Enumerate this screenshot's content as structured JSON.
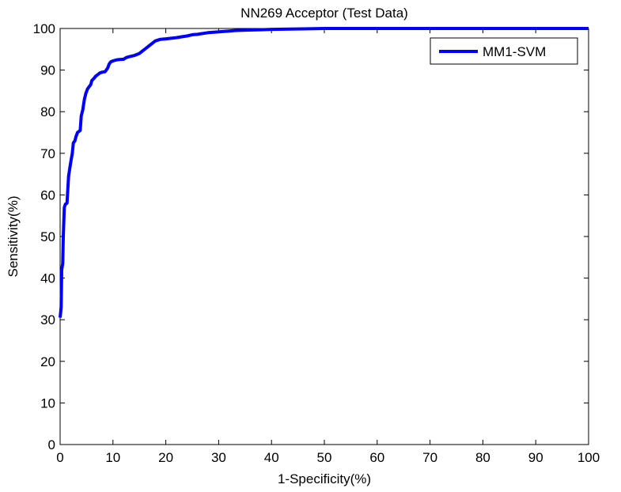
{
  "chart_data": {
    "type": "line",
    "title": "NN269 Acceptor (Test Data)",
    "xlabel": "1-Specificity(%)",
    "ylabel": "Sensitivity(%)",
    "xlim": [
      0,
      100
    ],
    "ylim": [
      0,
      100
    ],
    "xticks": [
      "0",
      "10",
      "20",
      "30",
      "40",
      "50",
      "60",
      "70",
      "80",
      "90",
      "100"
    ],
    "yticks": [
      "0",
      "10",
      "20",
      "30",
      "40",
      "50",
      "60",
      "70",
      "80",
      "90",
      "100"
    ],
    "grid": false,
    "legend_position": "top-right",
    "series": [
      {
        "name": "MM1-SVM",
        "color": "#0000ff",
        "x": [
          0,
          0.2,
          0.3,
          0.5,
          0.6,
          0.8,
          1.0,
          1.3,
          1.6,
          1.9,
          2.1,
          2.3,
          2.5,
          2.8,
          3.0,
          3.3,
          3.5,
          3.8,
          4.0,
          4.3,
          4.6,
          4.9,
          5.2,
          5.5,
          5.8,
          6.0,
          6.4,
          6.7,
          7.2,
          7.5,
          8.0,
          8.5,
          9.0,
          9.3,
          9.6,
          10.0,
          10.5,
          11.0,
          12.0,
          12.5,
          13.0,
          14.0,
          15.0,
          15.5,
          16.0,
          16.5,
          17.0,
          17.5,
          18.0,
          18.5,
          19.0,
          20.0,
          22.0,
          23.0,
          24.0,
          25.0,
          26.0,
          27.0,
          28.0,
          30.0,
          32.0,
          33.0,
          35.0,
          38.0,
          40.0,
          46.0,
          50.0,
          60.0,
          70.0,
          80.0,
          90.0,
          100.0
        ],
        "y": [
          30.5,
          33.0,
          42.0,
          43.5,
          50.0,
          57.0,
          57.8,
          58.0,
          64.5,
          67.0,
          68.5,
          70.0,
          72.5,
          73.0,
          74.0,
          75.0,
          75.2,
          75.5,
          79.0,
          80.5,
          83.0,
          84.5,
          85.5,
          86.0,
          86.5,
          87.5,
          88.0,
          88.5,
          89.0,
          89.3,
          89.5,
          89.6,
          90.5,
          91.5,
          92.0,
          92.2,
          92.4,
          92.5,
          92.6,
          93.0,
          93.2,
          93.5,
          94.0,
          94.5,
          95.0,
          95.5,
          96.0,
          96.5,
          97.0,
          97.2,
          97.4,
          97.5,
          97.8,
          98.0,
          98.2,
          98.5,
          98.6,
          98.8,
          99.0,
          99.2,
          99.4,
          99.5,
          99.6,
          99.7,
          99.8,
          99.9,
          100,
          100,
          100,
          100,
          100,
          100
        ]
      }
    ]
  }
}
